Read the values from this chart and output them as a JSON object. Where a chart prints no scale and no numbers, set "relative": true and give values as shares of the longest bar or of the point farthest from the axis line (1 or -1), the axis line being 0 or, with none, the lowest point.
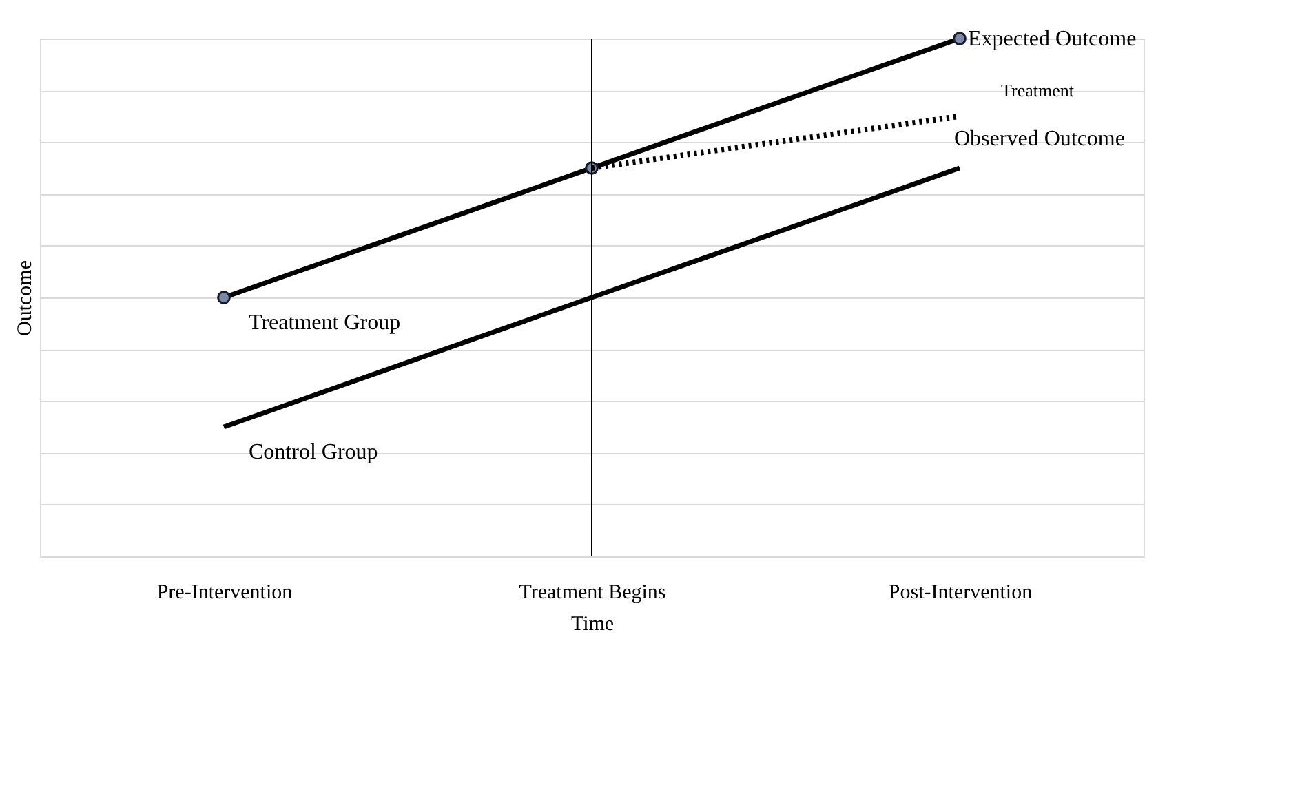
{
  "chart_data": {
    "type": "line",
    "relative": true,
    "xlabel": "Time",
    "ylabel": "Outcome",
    "categories": [
      "Pre-Intervention",
      "Treatment Begins",
      "Post-Intervention"
    ],
    "series": [
      {
        "name": "Treatment Group",
        "color": "#000000",
        "values": [
          0.5,
          0.75,
          1.0
        ],
        "marker": "circle",
        "line_style": "solid"
      },
      {
        "name": "Observed Outcome",
        "color": "#000000",
        "values": [
          null,
          0.75,
          0.85
        ],
        "marker": "none",
        "line_style": "dotted"
      },
      {
        "name": "Control Group",
        "color": "#000000",
        "values": [
          0.25,
          0.5,
          0.75
        ],
        "marker": "none",
        "line_style": "solid"
      }
    ],
    "annotations": [
      {
        "text": "Expected Outcome",
        "x": "Post-Intervention",
        "y": 1.0
      },
      "Treatment"
    ],
    "ref_lines": [
      {
        "axis": "x",
        "value": "Treatment Begins",
        "color": "#000000"
      }
    ],
    "grid": "y"
  }
}
